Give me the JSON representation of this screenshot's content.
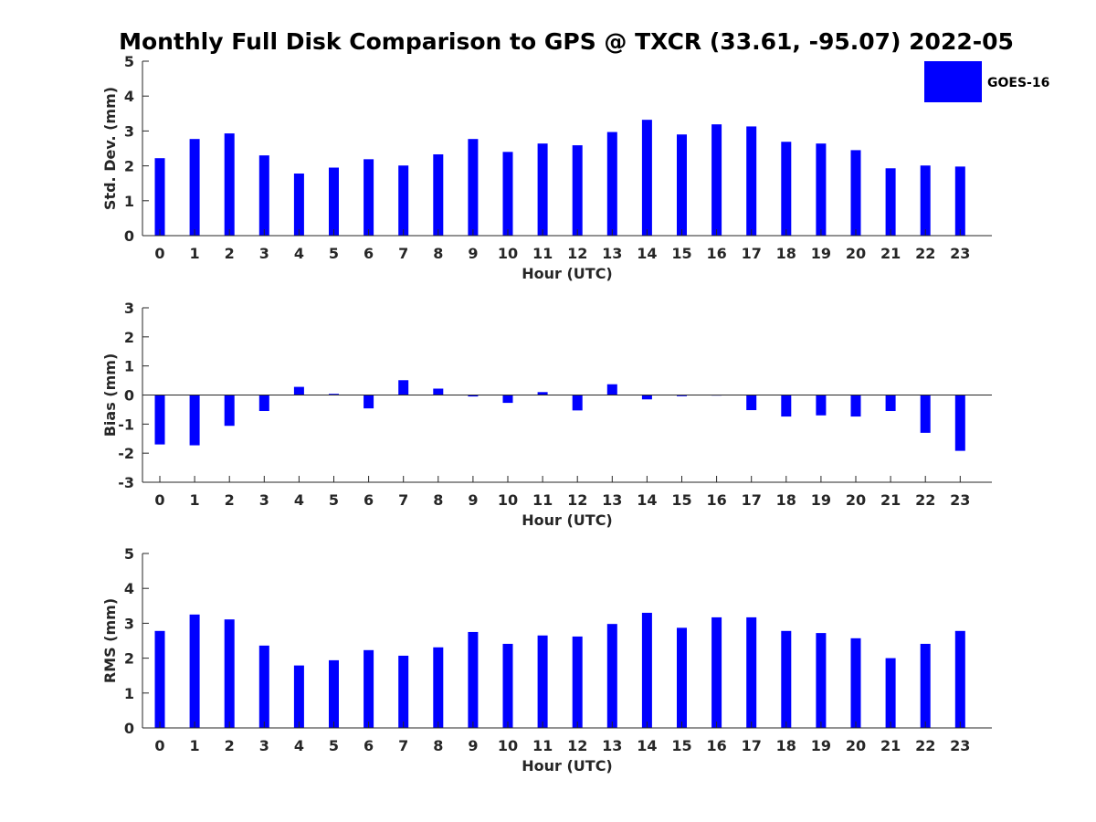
{
  "title": "Monthly Full Disk Comparison to GPS @ TXCR (33.61, -95.07) 2022-05",
  "legend": {
    "label": "GOES-16",
    "color": "#0000ff",
    "placement": "top-right"
  },
  "chart_data": [
    {
      "type": "bar",
      "ylabel": "Std. Dev. (mm)",
      "xlabel": "Hour (UTC)",
      "ylim": [
        0,
        5
      ],
      "yticks": [
        "0",
        "1",
        "2",
        "3",
        "4",
        "5"
      ],
      "categories": [
        "0",
        "1",
        "2",
        "3",
        "4",
        "5",
        "6",
        "7",
        "8",
        "9",
        "10",
        "11",
        "12",
        "13",
        "14",
        "15",
        "16",
        "17",
        "18",
        "19",
        "20",
        "21",
        "22",
        "23"
      ],
      "series": [
        {
          "name": "GOES-16",
          "color": "#0000ff",
          "values": [
            2.22,
            2.77,
            2.93,
            2.3,
            1.78,
            1.95,
            2.19,
            2.01,
            2.33,
            2.77,
            2.4,
            2.64,
            2.59,
            2.97,
            3.32,
            2.9,
            3.19,
            3.13,
            2.69,
            2.64,
            2.45,
            1.93,
            2.01,
            1.98
          ]
        }
      ]
    },
    {
      "type": "bar",
      "ylabel": "Bias (mm)",
      "xlabel": "Hour (UTC)",
      "ylim": [
        -3,
        3
      ],
      "yticks": [
        "-3",
        "-2",
        "-1",
        "0",
        "1",
        "2",
        "3"
      ],
      "categories": [
        "0",
        "1",
        "2",
        "3",
        "4",
        "5",
        "6",
        "7",
        "8",
        "9",
        "10",
        "11",
        "12",
        "13",
        "14",
        "15",
        "16",
        "17",
        "18",
        "19",
        "20",
        "21",
        "22",
        "23"
      ],
      "series": [
        {
          "name": "GOES-16",
          "color": "#0000ff",
          "values": [
            -1.7,
            -1.73,
            -1.06,
            -0.55,
            0.28,
            0.04,
            -0.46,
            0.51,
            0.22,
            -0.05,
            -0.27,
            0.1,
            -0.53,
            0.37,
            -0.15,
            -0.04,
            -0.02,
            -0.52,
            -0.74,
            -0.7,
            -0.74,
            -0.55,
            -1.3,
            -1.92
          ]
        }
      ]
    },
    {
      "type": "bar",
      "ylabel": "RMS (mm)",
      "xlabel": "Hour (UTC)",
      "ylim": [
        0,
        5
      ],
      "yticks": [
        "0",
        "1",
        "2",
        "3",
        "4",
        "5"
      ],
      "categories": [
        "0",
        "1",
        "2",
        "3",
        "4",
        "5",
        "6",
        "7",
        "8",
        "9",
        "10",
        "11",
        "12",
        "13",
        "14",
        "15",
        "16",
        "17",
        "18",
        "19",
        "20",
        "21",
        "22",
        "23"
      ],
      "series": [
        {
          "name": "GOES-16",
          "color": "#0000ff",
          "values": [
            2.78,
            3.25,
            3.11,
            2.36,
            1.79,
            1.94,
            2.23,
            2.07,
            2.31,
            2.75,
            2.41,
            2.65,
            2.62,
            2.98,
            3.3,
            2.87,
            3.17,
            3.17,
            2.78,
            2.72,
            2.57,
            2.0,
            2.41,
            2.78
          ]
        }
      ]
    }
  ]
}
